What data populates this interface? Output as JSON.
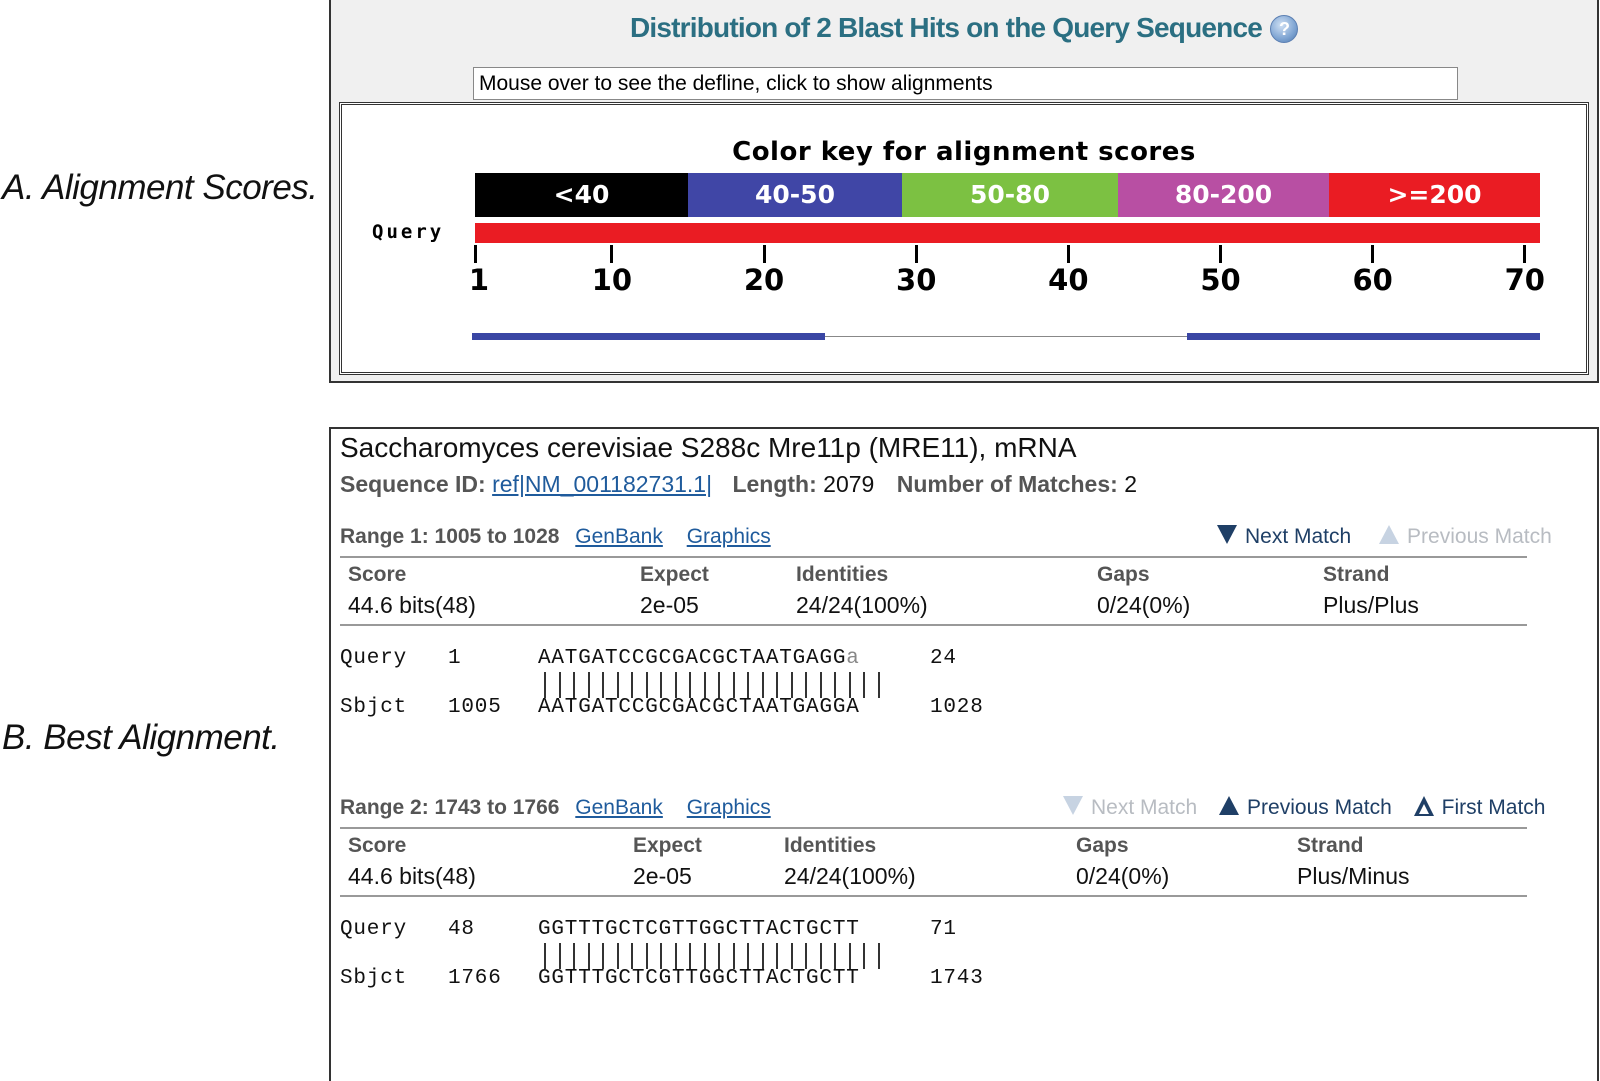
{
  "labels": {
    "a": "A. Alignment Scores.",
    "b": "B. Best Alignment."
  },
  "panel_a": {
    "title": "Distribution of 2 Blast Hits on the Query Sequence",
    "help_glyph": "?",
    "defline_text": "Mouse over to see the defline, click to show alignments",
    "color_key_title": "Color key for alignment scores",
    "color_key": [
      {
        "label": "<40",
        "color": "#000000"
      },
      {
        "label": "40-50",
        "color": "#4046a6"
      },
      {
        "label": "50-80",
        "color": "#7cc142"
      },
      {
        "label": "80-200",
        "color": "#b84fa3"
      },
      {
        "label": ">=200",
        "color": "#ea1c23"
      }
    ],
    "query_label": "Query",
    "query_length": 71,
    "axis_ticks": [
      "1",
      "10",
      "20",
      "30",
      "40",
      "50",
      "60",
      "70"
    ],
    "hits": [
      {
        "start": 1,
        "end": 24,
        "color": "#3a46a4"
      },
      {
        "start": 48,
        "end": 71,
        "color": "#3a46a4"
      }
    ]
  },
  "panel_b": {
    "description": "Saccharomyces cerevisiae S288c Mre11p (MRE11), mRNA",
    "seq_id_label": "Sequence ID:",
    "seq_id": "ref|NM_001182731.1|",
    "length_label": "Length:",
    "length": "2079",
    "matches_label": "Number of Matches:",
    "matches": "2",
    "ranges": [
      {
        "title": "Range 1: 1005 to 1028",
        "genbank": "GenBank",
        "graphics": "Graphics",
        "nav": {
          "next": "Next Match",
          "previous": "Previous Match"
        },
        "headers": {
          "score": "Score",
          "expect": "Expect",
          "identities": "Identities",
          "gaps": "Gaps",
          "strand": "Strand"
        },
        "values": {
          "score": "44.6 bits(48)",
          "expect": "2e-05",
          "identities": "24/24(100%)",
          "gaps": "0/24(0%)",
          "strand": "Plus/Plus"
        },
        "query": {
          "label": "Query",
          "start": "1",
          "seq": "AATGATCCGCGACGCTAATGAGG",
          "seq_lower": "a",
          "end": "24"
        },
        "sbjct": {
          "label": "Sbjct",
          "start": "1005",
          "seq": "AATGATCCGCGACGCTAATGAGGA",
          "end": "1028"
        }
      },
      {
        "title": "Range 2: 1743 to 1766",
        "genbank": "GenBank",
        "graphics": "Graphics",
        "nav": {
          "next": "Next Match",
          "previous": "Previous Match",
          "first": "First Match"
        },
        "headers": {
          "score": "Score",
          "expect": "Expect",
          "identities": "Identities",
          "gaps": "Gaps",
          "strand": "Strand"
        },
        "values": {
          "score": "44.6 bits(48)",
          "expect": "2e-05",
          "identities": "24/24(100%)",
          "gaps": "0/24(0%)",
          "strand": "Plus/Minus"
        },
        "query": {
          "label": "Query",
          "start": "48",
          "seq": "GGTTTGCTCGTTGGCTTACTGCTT",
          "end": "71"
        },
        "sbjct": {
          "label": "Sbjct",
          "start": "1766",
          "seq": "GGTTTGCTCGTTGGCTTACTGCTT",
          "end": "1743"
        }
      }
    ]
  }
}
